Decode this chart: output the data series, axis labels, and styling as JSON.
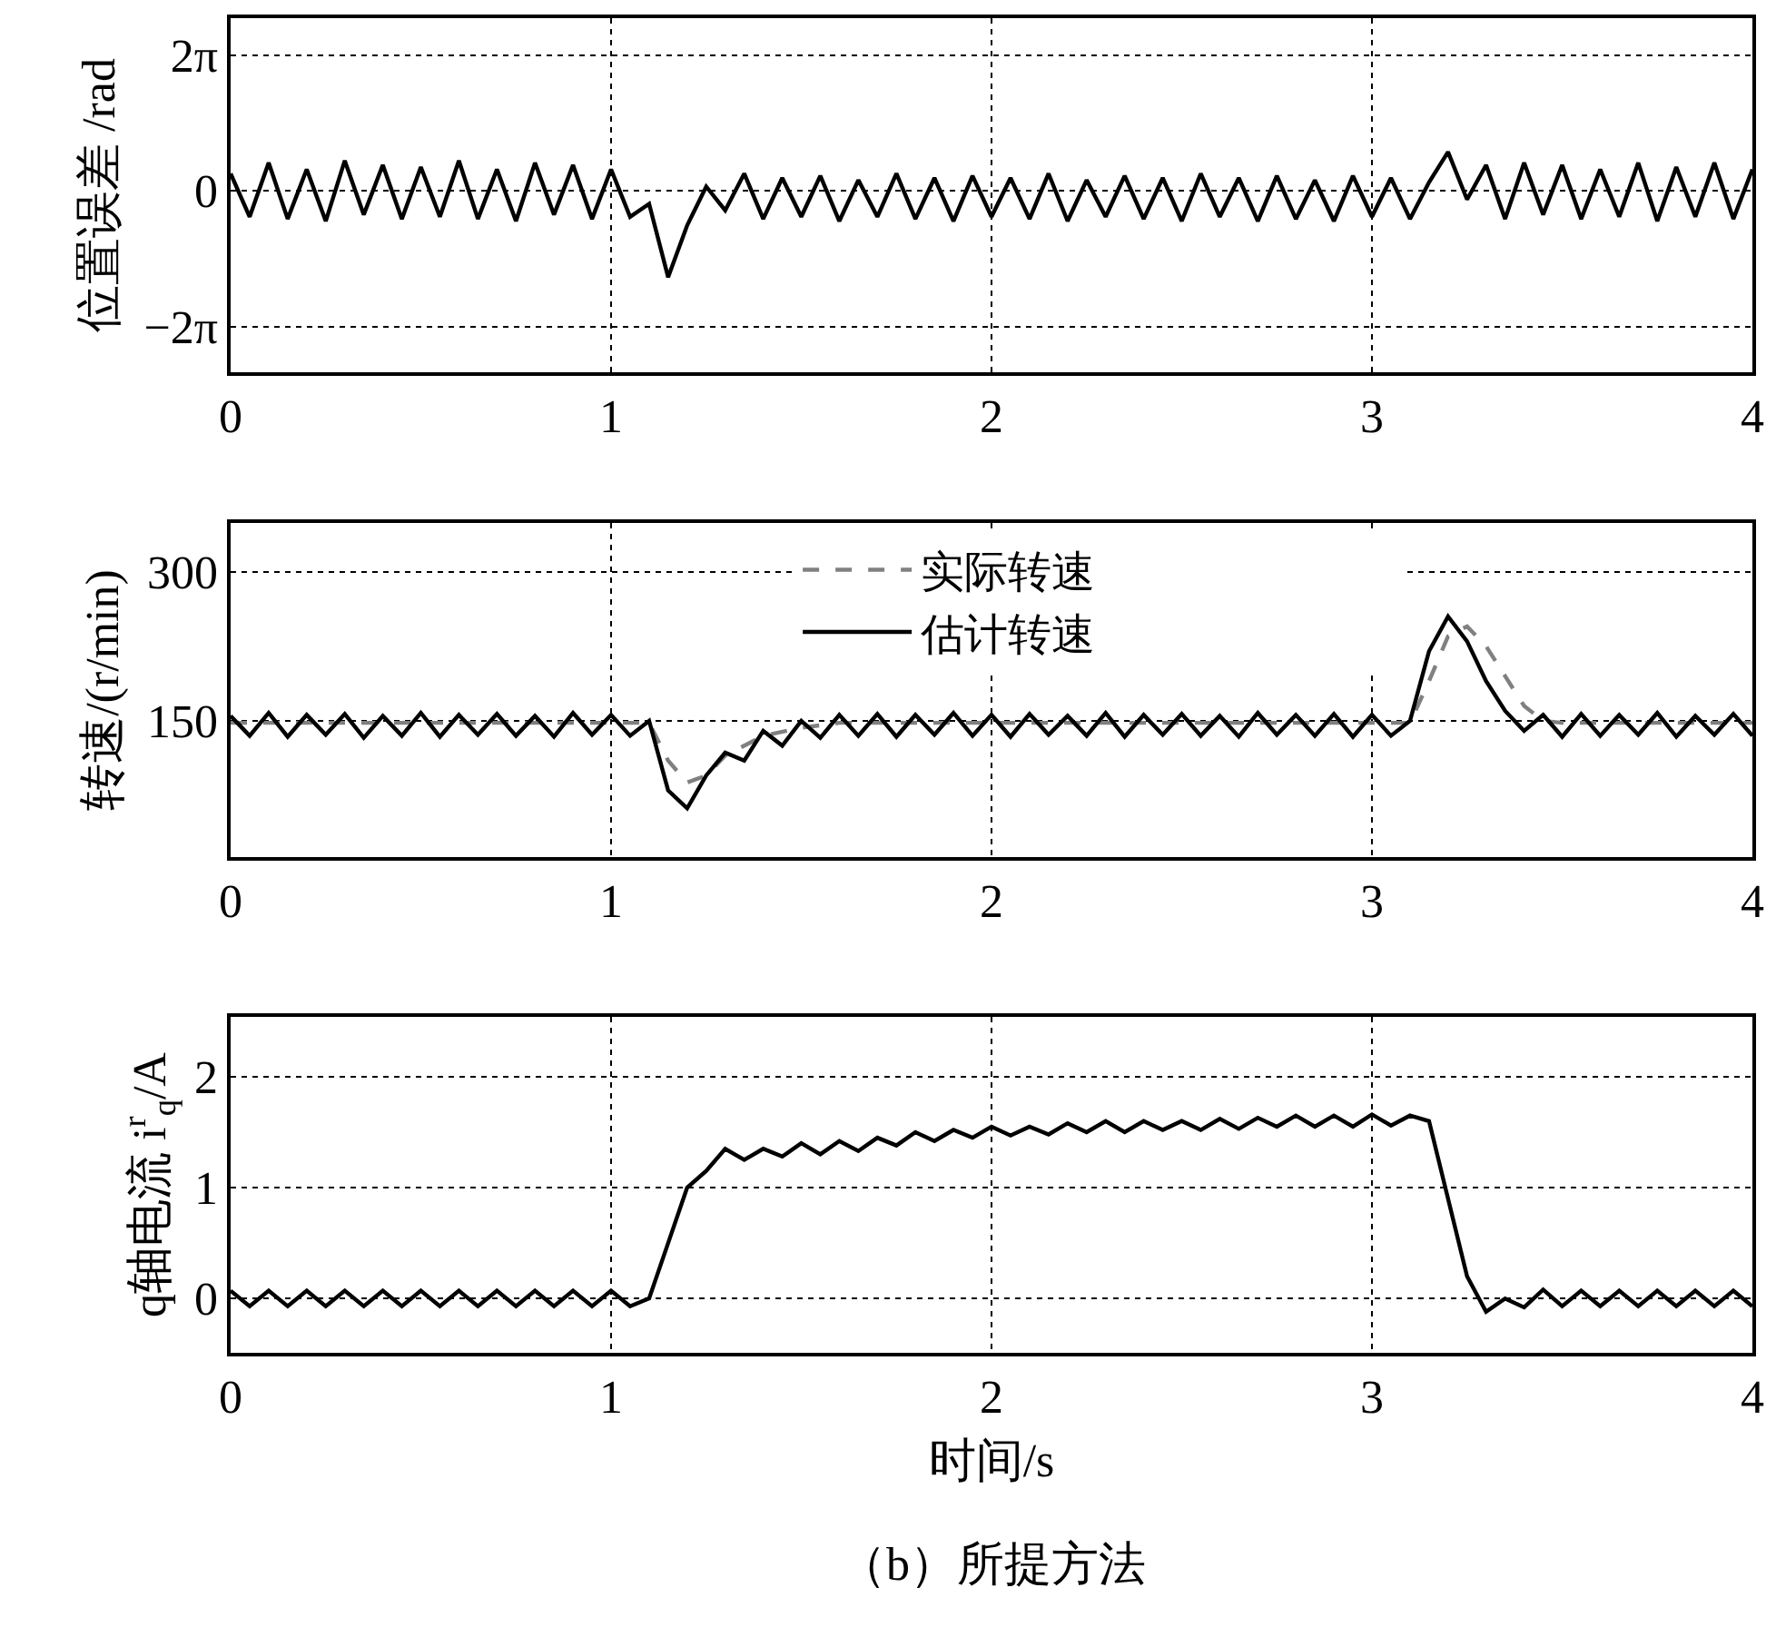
{
  "chart_data": [
    {
      "type": "line",
      "ylabel": "位置误差 /rad",
      "x": [
        0,
        0.05,
        0.1,
        0.15,
        0.2,
        0.25,
        0.3,
        0.35,
        0.4,
        0.45,
        0.5,
        0.55,
        0.6,
        0.65,
        0.7,
        0.75,
        0.8,
        0.85,
        0.9,
        0.95,
        1.0,
        1.05,
        1.1,
        1.15,
        1.2,
        1.25,
        1.3,
        1.35,
        1.4,
        1.45,
        1.5,
        1.55,
        1.6,
        1.65,
        1.7,
        1.75,
        1.8,
        1.85,
        1.9,
        1.95,
        2.0,
        2.05,
        2.1,
        2.15,
        2.2,
        2.25,
        2.3,
        2.35,
        2.4,
        2.45,
        2.5,
        2.55,
        2.6,
        2.65,
        2.7,
        2.75,
        2.8,
        2.85,
        2.9,
        2.95,
        3.0,
        3.05,
        3.1,
        3.15,
        3.2,
        3.25,
        3.3,
        3.35,
        3.4,
        3.45,
        3.5,
        3.55,
        3.6,
        3.65,
        3.7,
        3.75,
        3.8,
        3.85,
        3.9,
        3.95,
        4.0
      ],
      "series": [
        {
          "color": "#000000",
          "values": [
            0.8,
            -1.2,
            1.3,
            -1.3,
            1.0,
            -1.4,
            1.4,
            -1.1,
            1.2,
            -1.3,
            1.1,
            -1.2,
            1.4,
            -1.3,
            1.0,
            -1.4,
            1.3,
            -1.1,
            1.2,
            -1.3,
            1.0,
            -1.2,
            -0.6,
            -4.0,
            -1.6,
            0.2,
            -0.9,
            0.8,
            -1.3,
            0.6,
            -1.2,
            0.7,
            -1.4,
            0.5,
            -1.2,
            0.8,
            -1.3,
            0.6,
            -1.4,
            0.7,
            -1.2,
            0.6,
            -1.3,
            0.8,
            -1.4,
            0.5,
            -1.2,
            0.7,
            -1.3,
            0.6,
            -1.4,
            0.8,
            -1.2,
            0.6,
            -1.4,
            0.7,
            -1.3,
            0.5,
            -1.4,
            0.7,
            -1.2,
            0.6,
            -1.3,
            0.4,
            1.8,
            -0.4,
            1.2,
            -1.3,
            1.3,
            -1.1,
            1.2,
            -1.3,
            1.0,
            -1.2,
            1.3,
            -1.4,
            1.1,
            -1.2,
            1.3,
            -1.3,
            1.0
          ]
        }
      ],
      "xlim": [
        0,
        4
      ],
      "xticks": [
        0,
        1,
        2,
        3,
        4
      ],
      "ylim": [
        -8.4,
        8.0
      ],
      "yticks": [
        {
          "value": -6.283,
          "label": "−2π"
        },
        0,
        {
          "value": 6.283,
          "label": "2π"
        }
      ],
      "grid": true,
      "legend": false
    },
    {
      "type": "line",
      "ylabel": "转速/(r/min)",
      "x": [
        0,
        0.05,
        0.1,
        0.15,
        0.2,
        0.25,
        0.3,
        0.35,
        0.4,
        0.45,
        0.5,
        0.55,
        0.6,
        0.65,
        0.7,
        0.75,
        0.8,
        0.85,
        0.9,
        0.95,
        1.0,
        1.05,
        1.1,
        1.15,
        1.2,
        1.25,
        1.3,
        1.35,
        1.4,
        1.45,
        1.5,
        1.55,
        1.6,
        1.65,
        1.7,
        1.75,
        1.8,
        1.85,
        1.9,
        1.95,
        2.0,
        2.05,
        2.1,
        2.15,
        2.2,
        2.25,
        2.3,
        2.35,
        2.4,
        2.45,
        2.5,
        2.55,
        2.6,
        2.65,
        2.7,
        2.75,
        2.8,
        2.85,
        2.9,
        2.95,
        3.0,
        3.05,
        3.1,
        3.15,
        3.2,
        3.25,
        3.3,
        3.35,
        3.4,
        3.45,
        3.5,
        3.55,
        3.6,
        3.65,
        3.7,
        3.75,
        3.8,
        3.85,
        3.9,
        3.95,
        4.0
      ],
      "series": [
        {
          "name": "实际转速",
          "color": "#808080",
          "line_style": "dashed",
          "x": [
            0,
            1.1,
            1.15,
            1.2,
            1.25,
            1.3,
            1.4,
            1.5,
            1.6,
            3.1,
            3.15,
            3.2,
            3.25,
            3.3,
            3.35,
            3.4,
            3.45,
            3.5,
            4.0
          ],
          "values": [
            148,
            148,
            110,
            88,
            95,
            115,
            135,
            143,
            148,
            148,
            190,
            235,
            245,
            225,
            195,
            165,
            150,
            148,
            148
          ]
        },
        {
          "name": "估计转速",
          "color": "#000000",
          "line_style": "solid",
          "values": [
            155,
            135,
            158,
            134,
            156,
            136,
            157,
            133,
            155,
            135,
            158,
            134,
            156,
            136,
            157,
            135,
            155,
            134,
            158,
            136,
            156,
            135,
            150,
            80,
            62,
            95,
            118,
            110,
            140,
            125,
            150,
            133,
            156,
            135,
            157,
            134,
            156,
            136,
            158,
            135,
            156,
            134,
            157,
            136,
            155,
            135,
            158,
            134,
            156,
            136,
            157,
            135,
            155,
            134,
            158,
            136,
            156,
            135,
            157,
            134,
            156,
            135,
            150,
            220,
            255,
            230,
            190,
            160,
            140,
            156,
            134,
            157,
            135,
            156,
            136,
            158,
            134,
            155,
            136,
            157,
            135
          ]
        }
      ],
      "xlim": [
        0,
        4
      ],
      "xticks": [
        0,
        1,
        2,
        3,
        4
      ],
      "ylim": [
        13,
        349
      ],
      "yticks": [
        150,
        300
      ],
      "grid": true,
      "legend": "top right"
    },
    {
      "type": "line",
      "ylabel": "q轴电流 i$^{r}$$_{q}$/A",
      "xlabel": "时间/s",
      "x": [
        0,
        0.05,
        0.1,
        0.15,
        0.2,
        0.25,
        0.3,
        0.35,
        0.4,
        0.45,
        0.5,
        0.55,
        0.6,
        0.65,
        0.7,
        0.75,
        0.8,
        0.85,
        0.9,
        0.95,
        1.0,
        1.05,
        1.1,
        1.15,
        1.2,
        1.25,
        1.3,
        1.35,
        1.4,
        1.45,
        1.5,
        1.55,
        1.6,
        1.65,
        1.7,
        1.75,
        1.8,
        1.85,
        1.9,
        1.95,
        2.0,
        2.05,
        2.1,
        2.15,
        2.2,
        2.25,
        2.3,
        2.35,
        2.4,
        2.45,
        2.5,
        2.55,
        2.6,
        2.65,
        2.7,
        2.75,
        2.8,
        2.85,
        2.9,
        2.95,
        3.0,
        3.05,
        3.1,
        3.15,
        3.2,
        3.25,
        3.3,
        3.35,
        3.4,
        3.45,
        3.5,
        3.55,
        3.6,
        3.65,
        3.7,
        3.75,
        3.8,
        3.85,
        3.9,
        3.95,
        4.0
      ],
      "series": [
        {
          "color": "#000000",
          "values": [
            0.07,
            -0.07,
            0.07,
            -0.07,
            0.07,
            -0.07,
            0.07,
            -0.07,
            0.07,
            -0.07,
            0.07,
            -0.07,
            0.07,
            -0.07,
            0.07,
            -0.07,
            0.07,
            -0.07,
            0.07,
            -0.07,
            0.07,
            -0.07,
            0.0,
            0.5,
            1.0,
            1.15,
            1.35,
            1.25,
            1.35,
            1.28,
            1.4,
            1.3,
            1.42,
            1.33,
            1.45,
            1.38,
            1.5,
            1.42,
            1.52,
            1.45,
            1.55,
            1.47,
            1.55,
            1.48,
            1.58,
            1.5,
            1.6,
            1.5,
            1.6,
            1.52,
            1.6,
            1.52,
            1.62,
            1.53,
            1.63,
            1.55,
            1.65,
            1.55,
            1.65,
            1.55,
            1.66,
            1.56,
            1.65,
            1.6,
            0.9,
            0.2,
            -0.12,
            0.0,
            -0.08,
            0.08,
            -0.07,
            0.07,
            -0.07,
            0.07,
            -0.07,
            0.07,
            -0.07,
            0.07,
            -0.07,
            0.07,
            -0.07
          ]
        }
      ],
      "xlim": [
        0,
        4
      ],
      "xticks": [
        0,
        1,
        2,
        3,
        4
      ],
      "ylim": [
        -0.49,
        2.54
      ],
      "yticks": [
        0,
        1,
        2
      ],
      "grid": true,
      "legend": false,
      "annotations": [
        "（b）所提方法"
      ]
    }
  ]
}
